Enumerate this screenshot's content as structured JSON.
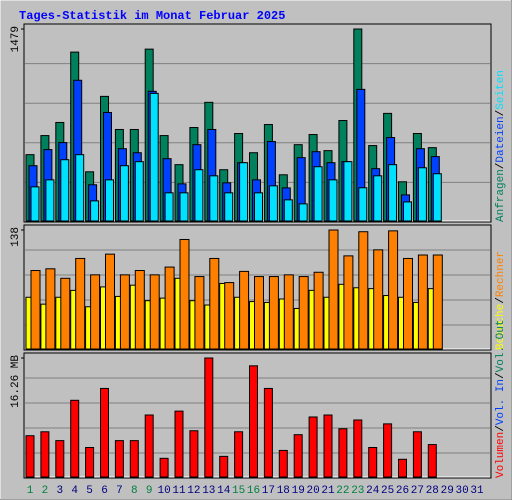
{
  "title": "Tages-Statistik im Monat Februar 2025",
  "separator": "/",
  "categories": [
    "1",
    "2",
    "3",
    "4",
    "5",
    "6",
    "7",
    "8",
    "9",
    "10",
    "11",
    "12",
    "13",
    "14",
    "15",
    "16",
    "17",
    "18",
    "19",
    "20",
    "21",
    "22",
    "23",
    "24",
    "25",
    "26",
    "27",
    "28",
    "29",
    "30",
    "31"
  ],
  "category_colors": [
    "#008040",
    "#008040",
    "#000080",
    "#000080",
    "#000080",
    "#000080",
    "#000080",
    "#008040",
    "#008040",
    "#000080",
    "#000080",
    "#000080",
    "#000080",
    "#000080",
    "#008040",
    "#008040",
    "#000080",
    "#000080",
    "#000080",
    "#000080",
    "#000080",
    "#008040",
    "#008040",
    "#000080",
    "#000080",
    "#000080",
    "#000080",
    "#000080",
    "#000080",
    "#000080",
    "#000080"
  ],
  "chart_data": [
    {
      "type": "bar",
      "ylim": [
        0,
        1479
      ],
      "yticks": [
        1479
      ],
      "series": [
        {
          "name": "Anfragen",
          "color": "#00805c",
          "values": [
            511,
            658,
            759,
            1301,
            379,
            960,
            705,
            705,
            1324,
            658,
            434,
            720,
            914,
            395,
            674,
            526,
            743,
            356,
            588,
            666,
            542,
            774,
            1479,
            581,
            829,
            302,
            674,
            565,
            null,
            null,
            null
          ]
        },
        {
          "name": "Dateien",
          "color": "#0040ff",
          "values": [
            426,
            550,
            604,
            1084,
            279,
            836,
            557,
            526,
            999,
            480,
            286,
            588,
            705,
            294,
            449,
            317,
            612,
            255,
            488,
            534,
            449,
            457,
            1014,
            403,
            643,
            201,
            557,
            496,
            null,
            null,
            null
          ]
        },
        {
          "name": "Seiten",
          "color": "#00e0ff",
          "values": [
            263,
            317,
            472,
            511,
            155,
            317,
            426,
            457,
            983,
            217,
            217,
            395,
            348,
            217,
            449,
            217,
            271,
            163,
            132,
            418,
            317,
            457,
            256,
            348,
            434,
            147,
            410,
            364,
            null,
            null,
            null
          ]
        }
      ]
    },
    {
      "type": "bar",
      "ylim": [
        0,
        138
      ],
      "yticks": [
        138
      ],
      "series": [
        {
          "name": "Besuche",
          "color": "#ffff00",
          "values": [
            60,
            52,
            60,
            68,
            49,
            72,
            61,
            74,
            56,
            59,
            82,
            56,
            51,
            76,
            60,
            55,
            54,
            58,
            47,
            68,
            60,
            75,
            71,
            70,
            62,
            60,
            54,
            70,
            null,
            null,
            null
          ]
        },
        {
          "name": "Rechner",
          "color": "#ff8000",
          "values": [
            91,
            93,
            82,
            105,
            86,
            110,
            86,
            91,
            86,
            95,
            127,
            84,
            105,
            77,
            90,
            84,
            84,
            86,
            84,
            89,
            138,
            108,
            136,
            115,
            137,
            105,
            109,
            109,
            null,
            null,
            null
          ]
        }
      ]
    },
    {
      "type": "bar",
      "ylim": [
        0,
        16.26
      ],
      "yticks": [
        {
          "value": 16.26,
          "label": "16.26 MB"
        }
      ],
      "series": [
        {
          "name": "Volumen",
          "color": "#ff0000",
          "values": [
            5.64,
            6.18,
            4.97,
            10.48,
            4.03,
            12.1,
            4.97,
            4.97,
            8.47,
            2.55,
            9.0,
            6.32,
            16.26,
            2.82,
            6.18,
            15.19,
            12.1,
            3.63,
            5.78,
            8.2,
            8.47,
            6.59,
            7.79,
            4.03,
            7.26,
            2.42,
            6.18,
            4.43,
            null,
            null,
            null
          ]
        },
        {
          "name": "Vol. In",
          "color": "#0040ff",
          "values": [
            null,
            null,
            null,
            null,
            null,
            null,
            null,
            null,
            null,
            null,
            null,
            null,
            null,
            null,
            null,
            null,
            null,
            null,
            null,
            null,
            null,
            null,
            null,
            null,
            null,
            null,
            null,
            null,
            null,
            null,
            null
          ]
        },
        {
          "name": "Vol. Out",
          "color": "#00805c",
          "values": [
            null,
            null,
            null,
            null,
            null,
            null,
            null,
            null,
            null,
            null,
            null,
            null,
            null,
            null,
            null,
            null,
            null,
            null,
            null,
            null,
            null,
            null,
            null,
            null,
            null,
            null,
            null,
            null,
            null,
            null,
            null
          ]
        }
      ]
    }
  ]
}
